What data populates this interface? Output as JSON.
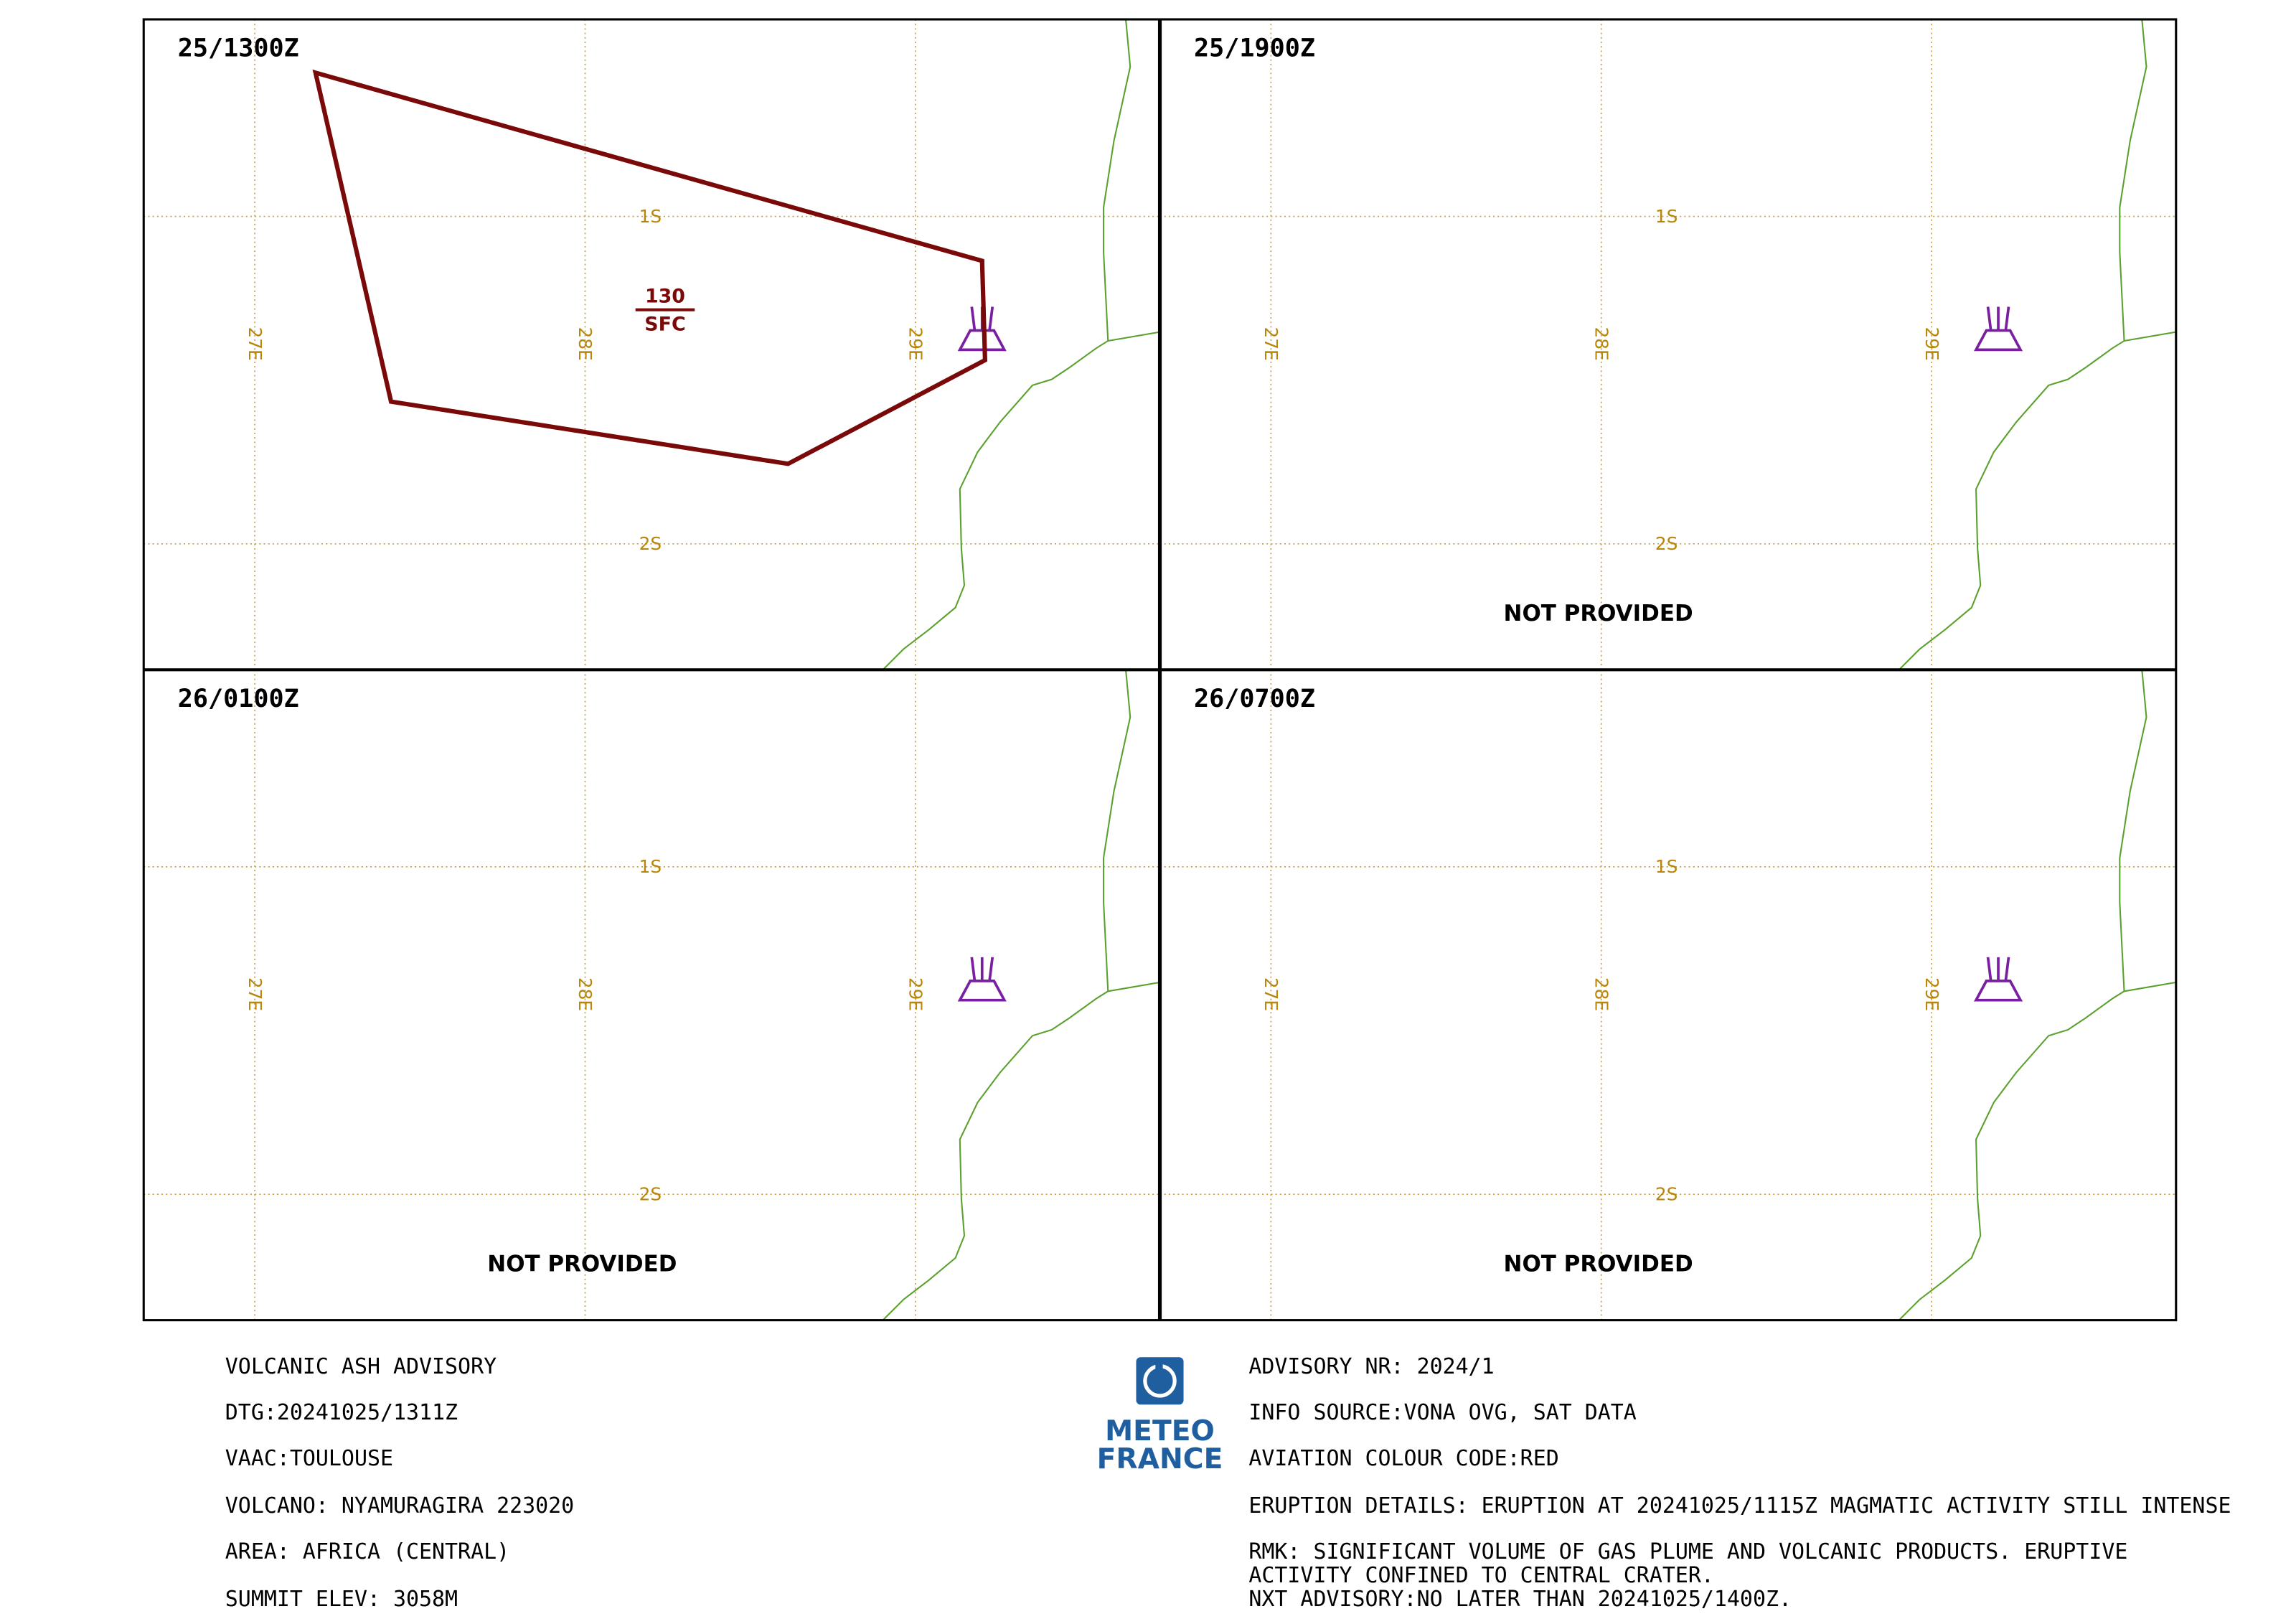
{
  "panels": [
    {
      "time": "25/1300Z",
      "flight_level_top": "130",
      "flight_level_bottom": "SFC"
    },
    {
      "time": "25/1900Z",
      "status": "NOT PROVIDED"
    },
    {
      "time": "26/0100Z",
      "status": "NOT PROVIDED"
    },
    {
      "time": "26/0700Z",
      "status": "NOT PROVIDED"
    }
  ],
  "grid": {
    "longitudes": [
      "27E",
      "28E",
      "29E"
    ],
    "latitudes": [
      "1S",
      "2S"
    ]
  },
  "logo": [
    "METEO",
    "FRANCE"
  ],
  "left_info": [
    "VOLCANIC ASH ADVISORY",
    "DTG:20241025/1311Z",
    "VAAC:TOULOUSE",
    "VOLCANO: NYAMURAGIRA 223020",
    "AREA: AFRICA (CENTRAL)",
    "SUMMIT ELEV: 3058M"
  ],
  "right_info": [
    "ADVISORY NR: 2024/1",
    "INFO SOURCE:VONA OVG, SAT DATA",
    "AVIATION COLOUR CODE:RED",
    "ERUPTION DETAILS: ERUPTION AT 20241025/1115Z MAGMATIC ACTIVITY STILL INTENSE",
    "RMK: SIGNIFICANT VOLUME OF GAS PLUME AND VOLCANIC  PRODUCTS. ERUPTIVE",
    "ACTIVITY CONFINED TO CENTRAL  CRATER.",
    "NXT ADVISORY:NO LATER THAN 20241025/1400Z."
  ]
}
